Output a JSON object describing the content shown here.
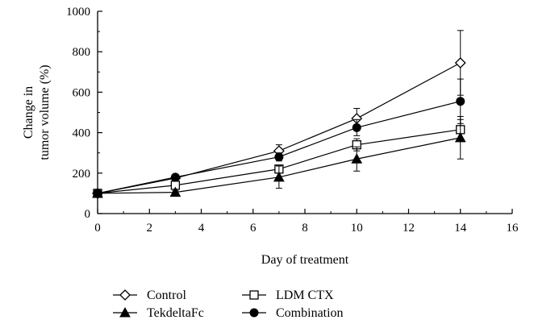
{
  "chart_data": {
    "type": "line",
    "xlabel": "Day of treatment",
    "ylabel_lines": [
      "Change in",
      "tumor volume (%)"
    ],
    "xlim": [
      0,
      16
    ],
    "ylim": [
      0,
      1000
    ],
    "xticks": [
      0,
      2,
      4,
      6,
      8,
      10,
      12,
      14,
      16
    ],
    "yticks": [
      0,
      200,
      400,
      600,
      800,
      1000
    ],
    "grid": false,
    "legend_position": "bottom",
    "series": [
      {
        "name": "Control",
        "marker": "diamond-open",
        "color": "#000000",
        "x": [
          0,
          3,
          7,
          10,
          14
        ],
        "y": [
          100,
          175,
          310,
          470,
          745
        ],
        "err": [
          0,
          10,
          30,
          50,
          160
        ]
      },
      {
        "name": "LDM CTX",
        "marker": "square-open",
        "color": "#000000",
        "x": [
          0,
          3,
          7,
          10,
          14
        ],
        "y": [
          100,
          140,
          220,
          340,
          415
        ],
        "err": [
          0,
          10,
          15,
          30,
          50
        ]
      },
      {
        "name": "TekdeltaFc",
        "marker": "triangle-filled",
        "color": "#000000",
        "x": [
          0,
          3,
          7,
          10,
          14
        ],
        "y": [
          100,
          105,
          180,
          270,
          375
        ],
        "err": [
          0,
          8,
          55,
          60,
          105
        ]
      },
      {
        "name": "Combination",
        "marker": "circle-filled",
        "color": "#000000",
        "x": [
          0,
          3,
          7,
          10,
          14
        ],
        "y": [
          100,
          180,
          280,
          425,
          555
        ],
        "err": [
          0,
          10,
          20,
          40,
          110
        ]
      }
    ]
  }
}
